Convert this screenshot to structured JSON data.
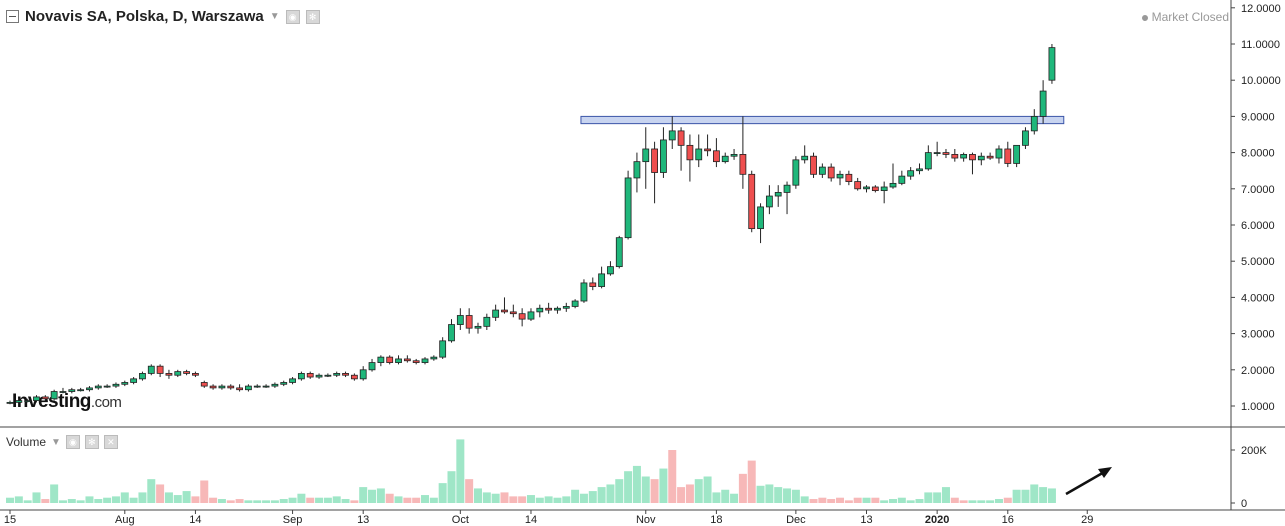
{
  "header": {
    "title": "Novavis SA, Polska, D, Warszawa",
    "status": "Market Closed"
  },
  "volume_panel": {
    "label": "Volume"
  },
  "logo": {
    "main": "Investing",
    "suffix": ".com"
  },
  "colors": {
    "up": "#1fb77b",
    "down": "#ef4f4f",
    "up_vol": "#9fe6c7",
    "down_vol": "#f7b8b8",
    "resistance": "#c8d4f0"
  },
  "chart_data": [
    {
      "type": "candlestick",
      "price_ticks": [
        "1.0000",
        "2.0000",
        "3.0000",
        "4.0000",
        "5.0000",
        "6.0000",
        "7.0000",
        "8.0000",
        "9.0000",
        "10.0000",
        "11.0000",
        "12.0000"
      ],
      "x_ticks": [
        {
          "label": "15",
          "i": 0
        },
        {
          "label": "Aug",
          "i": 13
        },
        {
          "label": "14",
          "i": 21
        },
        {
          "label": "Sep",
          "i": 32
        },
        {
          "label": "13",
          "i": 40
        },
        {
          "label": "Oct",
          "i": 51
        },
        {
          "label": "14",
          "i": 59
        },
        {
          "label": "Nov",
          "i": 72
        },
        {
          "label": "18",
          "i": 80
        },
        {
          "label": "Dec",
          "i": 89
        },
        {
          "label": "13",
          "i": 97
        },
        {
          "label": "2020",
          "i": 105
        },
        {
          "label": "16",
          "i": 113
        },
        {
          "label": "29",
          "i": 122
        }
      ],
      "resistance_zone": {
        "from": 8.8,
        "to": 9.0,
        "i_start": 65,
        "i_end": 119
      },
      "candles": [
        [
          1.1,
          1.15,
          1.05,
          1.1
        ],
        [
          1.1,
          1.2,
          1.05,
          1.15
        ],
        [
          1.15,
          1.2,
          1.1,
          1.15
        ],
        [
          1.15,
          1.3,
          1.1,
          1.25
        ],
        [
          1.25,
          1.3,
          1.15,
          1.2
        ],
        [
          1.2,
          1.45,
          1.15,
          1.4
        ],
        [
          1.4,
          1.5,
          1.35,
          1.4
        ],
        [
          1.4,
          1.5,
          1.35,
          1.45
        ],
        [
          1.45,
          1.5,
          1.4,
          1.45
        ],
        [
          1.45,
          1.55,
          1.4,
          1.5
        ],
        [
          1.5,
          1.6,
          1.45,
          1.55
        ],
        [
          1.55,
          1.6,
          1.5,
          1.55
        ],
        [
          1.55,
          1.65,
          1.5,
          1.6
        ],
        [
          1.6,
          1.7,
          1.55,
          1.65
        ],
        [
          1.65,
          1.8,
          1.6,
          1.75
        ],
        [
          1.75,
          1.95,
          1.7,
          1.9
        ],
        [
          1.9,
          2.15,
          1.85,
          2.1
        ],
        [
          2.1,
          2.15,
          1.8,
          1.9
        ],
        [
          1.9,
          2.0,
          1.75,
          1.85
        ],
        [
          1.85,
          2.0,
          1.8,
          1.95
        ],
        [
          1.95,
          2.0,
          1.85,
          1.9
        ],
        [
          1.9,
          1.95,
          1.8,
          1.85
        ],
        [
          1.65,
          1.7,
          1.5,
          1.55
        ],
        [
          1.55,
          1.6,
          1.45,
          1.5
        ],
        [
          1.5,
          1.6,
          1.45,
          1.55
        ],
        [
          1.55,
          1.6,
          1.45,
          1.5
        ],
        [
          1.5,
          1.6,
          1.4,
          1.45
        ],
        [
          1.45,
          1.6,
          1.4,
          1.55
        ],
        [
          1.55,
          1.6,
          1.5,
          1.55
        ],
        [
          1.55,
          1.6,
          1.5,
          1.55
        ],
        [
          1.55,
          1.65,
          1.5,
          1.6
        ],
        [
          1.6,
          1.7,
          1.55,
          1.65
        ],
        [
          1.65,
          1.8,
          1.6,
          1.75
        ],
        [
          1.75,
          1.95,
          1.7,
          1.9
        ],
        [
          1.9,
          1.95,
          1.75,
          1.8
        ],
        [
          1.8,
          1.9,
          1.75,
          1.85
        ],
        [
          1.85,
          1.9,
          1.8,
          1.85
        ],
        [
          1.85,
          1.95,
          1.8,
          1.9
        ],
        [
          1.9,
          1.95,
          1.8,
          1.85
        ],
        [
          1.85,
          1.9,
          1.7,
          1.75
        ],
        [
          1.75,
          2.1,
          1.7,
          2.0
        ],
        [
          2.0,
          2.3,
          1.95,
          2.2
        ],
        [
          2.2,
          2.4,
          2.1,
          2.35
        ],
        [
          2.35,
          2.4,
          2.15,
          2.2
        ],
        [
          2.2,
          2.4,
          2.15,
          2.3
        ],
        [
          2.3,
          2.4,
          2.2,
          2.25
        ],
        [
          2.25,
          2.3,
          2.15,
          2.2
        ],
        [
          2.2,
          2.35,
          2.15,
          2.3
        ],
        [
          2.3,
          2.4,
          2.25,
          2.35
        ],
        [
          2.35,
          2.9,
          2.3,
          2.8
        ],
        [
          2.8,
          3.4,
          2.75,
          3.25
        ],
        [
          3.25,
          3.7,
          3.1,
          3.5
        ],
        [
          3.5,
          3.7,
          3.0,
          3.15
        ],
        [
          3.15,
          3.3,
          3.0,
          3.2
        ],
        [
          3.2,
          3.55,
          3.1,
          3.45
        ],
        [
          3.45,
          3.8,
          3.35,
          3.65
        ],
        [
          3.65,
          4.0,
          3.55,
          3.6
        ],
        [
          3.6,
          3.8,
          3.45,
          3.55
        ],
        [
          3.55,
          3.7,
          3.2,
          3.4
        ],
        [
          3.4,
          3.7,
          3.35,
          3.6
        ],
        [
          3.6,
          3.8,
          3.45,
          3.7
        ],
        [
          3.7,
          3.85,
          3.55,
          3.65
        ],
        [
          3.65,
          3.75,
          3.55,
          3.7
        ],
        [
          3.7,
          3.85,
          3.6,
          3.75
        ],
        [
          3.75,
          3.95,
          3.7,
          3.9
        ],
        [
          3.9,
          4.5,
          3.85,
          4.4
        ],
        [
          4.4,
          4.55,
          4.2,
          4.3
        ],
        [
          4.3,
          4.85,
          4.25,
          4.65
        ],
        [
          4.65,
          5.0,
          4.6,
          4.85
        ],
        [
          4.85,
          5.7,
          4.8,
          5.65
        ],
        [
          5.65,
          7.5,
          5.6,
          7.3
        ],
        [
          7.3,
          8.0,
          6.9,
          7.75
        ],
        [
          7.75,
          8.7,
          7.0,
          8.1
        ],
        [
          8.1,
          8.3,
          6.6,
          7.45
        ],
        [
          7.45,
          8.7,
          7.3,
          8.35
        ],
        [
          8.35,
          9.0,
          8.1,
          8.6
        ],
        [
          8.6,
          8.7,
          7.5,
          8.2
        ],
        [
          8.2,
          8.5,
          7.2,
          7.8
        ],
        [
          7.8,
          8.5,
          7.6,
          8.1
        ],
        [
          8.1,
          8.5,
          7.9,
          8.05
        ],
        [
          8.05,
          8.4,
          7.6,
          7.75
        ],
        [
          7.75,
          8.0,
          7.7,
          7.9
        ],
        [
          7.9,
          8.1,
          7.8,
          7.95
        ],
        [
          7.95,
          9.0,
          7.0,
          7.4
        ],
        [
          7.4,
          7.5,
          5.8,
          5.9
        ],
        [
          5.9,
          6.6,
          5.5,
          6.5
        ],
        [
          6.5,
          7.1,
          6.3,
          6.8
        ],
        [
          6.8,
          7.1,
          6.5,
          6.9
        ],
        [
          6.9,
          7.2,
          6.3,
          7.1
        ],
        [
          7.1,
          7.9,
          7.0,
          7.8
        ],
        [
          7.8,
          8.2,
          7.7,
          7.9
        ],
        [
          7.9,
          8.0,
          7.3,
          7.4
        ],
        [
          7.4,
          7.7,
          7.3,
          7.6
        ],
        [
          7.6,
          7.7,
          7.2,
          7.3
        ],
        [
          7.3,
          7.5,
          7.1,
          7.4
        ],
        [
          7.4,
          7.5,
          7.1,
          7.2
        ],
        [
          7.2,
          7.3,
          6.95,
          7.0
        ],
        [
          7.0,
          7.1,
          6.9,
          7.05
        ],
        [
          7.05,
          7.1,
          6.9,
          6.95
        ],
        [
          6.95,
          7.2,
          6.6,
          7.05
        ],
        [
          7.05,
          7.7,
          7.0,
          7.15
        ],
        [
          7.15,
          7.5,
          7.1,
          7.35
        ],
        [
          7.35,
          7.6,
          7.25,
          7.5
        ],
        [
          7.5,
          7.7,
          7.4,
          7.55
        ],
        [
          7.55,
          8.2,
          7.5,
          8.0
        ],
        [
          8.0,
          8.3,
          7.9,
          8.0
        ],
        [
          8.0,
          8.1,
          7.85,
          7.95
        ],
        [
          7.95,
          8.1,
          7.75,
          7.85
        ],
        [
          7.85,
          8.0,
          7.75,
          7.95
        ],
        [
          7.95,
          8.0,
          7.4,
          7.8
        ],
        [
          7.8,
          8.0,
          7.65,
          7.9
        ],
        [
          7.9,
          8.0,
          7.8,
          7.85
        ],
        [
          7.85,
          8.2,
          7.7,
          8.1
        ],
        [
          8.1,
          8.3,
          7.6,
          7.7
        ],
        [
          7.7,
          8.2,
          7.6,
          8.2
        ],
        [
          8.2,
          8.7,
          8.1,
          8.6
        ],
        [
          8.6,
          9.2,
          8.5,
          9.0
        ],
        [
          9.0,
          10.0,
          8.8,
          9.7
        ],
        [
          10.0,
          11.0,
          9.9,
          10.9
        ]
      ],
      "volumes": [
        [
          20,
          1
        ],
        [
          25,
          1
        ],
        [
          10,
          1
        ],
        [
          40,
          1
        ],
        [
          15,
          0
        ],
        [
          70,
          1
        ],
        [
          10,
          1
        ],
        [
          15,
          1
        ],
        [
          10,
          1
        ],
        [
          25,
          1
        ],
        [
          15,
          1
        ],
        [
          20,
          1
        ],
        [
          25,
          1
        ],
        [
          40,
          1
        ],
        [
          20,
          1
        ],
        [
          40,
          1
        ],
        [
          90,
          1
        ],
        [
          70,
          0
        ],
        [
          40,
          1
        ],
        [
          30,
          1
        ],
        [
          45,
          1
        ],
        [
          25,
          0
        ],
        [
          85,
          0
        ],
        [
          20,
          0
        ],
        [
          15,
          1
        ],
        [
          10,
          0
        ],
        [
          15,
          0
        ],
        [
          10,
          1
        ],
        [
          10,
          1
        ],
        [
          10,
          1
        ],
        [
          10,
          1
        ],
        [
          15,
          1
        ],
        [
          20,
          1
        ],
        [
          35,
          1
        ],
        [
          20,
          0
        ],
        [
          20,
          1
        ],
        [
          20,
          1
        ],
        [
          25,
          1
        ],
        [
          15,
          1
        ],
        [
          10,
          0
        ],
        [
          60,
          1
        ],
        [
          50,
          1
        ],
        [
          55,
          1
        ],
        [
          35,
          0
        ],
        [
          25,
          1
        ],
        [
          20,
          0
        ],
        [
          20,
          0
        ],
        [
          30,
          1
        ],
        [
          20,
          1
        ],
        [
          75,
          1
        ],
        [
          120,
          1
        ],
        [
          240,
          1
        ],
        [
          90,
          0
        ],
        [
          55,
          1
        ],
        [
          40,
          1
        ],
        [
          35,
          1
        ],
        [
          40,
          0
        ],
        [
          25,
          0
        ],
        [
          25,
          0
        ],
        [
          30,
          1
        ],
        [
          20,
          1
        ],
        [
          25,
          1
        ],
        [
          20,
          1
        ],
        [
          25,
          1
        ],
        [
          50,
          1
        ],
        [
          35,
          1
        ],
        [
          45,
          1
        ],
        [
          60,
          1
        ],
        [
          70,
          1
        ],
        [
          90,
          1
        ],
        [
          120,
          1
        ],
        [
          140,
          1
        ],
        [
          100,
          1
        ],
        [
          90,
          0
        ],
        [
          130,
          1
        ],
        [
          200,
          0
        ],
        [
          60,
          0
        ],
        [
          70,
          0
        ],
        [
          90,
          1
        ],
        [
          100,
          1
        ],
        [
          40,
          1
        ],
        [
          50,
          1
        ],
        [
          35,
          1
        ],
        [
          110,
          0
        ],
        [
          160,
          0
        ],
        [
          65,
          1
        ],
        [
          70,
          1
        ],
        [
          60,
          1
        ],
        [
          55,
          1
        ],
        [
          50,
          1
        ],
        [
          25,
          1
        ],
        [
          15,
          0
        ],
        [
          20,
          0
        ],
        [
          15,
          0
        ],
        [
          20,
          0
        ],
        [
          10,
          0
        ],
        [
          20,
          0
        ],
        [
          20,
          1
        ],
        [
          20,
          0
        ],
        [
          10,
          1
        ],
        [
          15,
          1
        ],
        [
          20,
          1
        ],
        [
          10,
          1
        ],
        [
          15,
          1
        ],
        [
          40,
          1
        ],
        [
          40,
          1
        ],
        [
          60,
          1
        ],
        [
          20,
          0
        ],
        [
          10,
          0
        ],
        [
          10,
          1
        ],
        [
          10,
          1
        ],
        [
          10,
          1
        ],
        [
          15,
          1
        ],
        [
          20,
          0
        ],
        [
          50,
          1
        ],
        [
          50,
          1
        ],
        [
          70,
          1
        ],
        [
          60,
          1
        ],
        [
          55,
          1
        ]
      ],
      "volume_ticks": [
        {
          "label": "200K",
          "v": 200
        },
        {
          "label": "0",
          "v": 0
        }
      ]
    }
  ]
}
